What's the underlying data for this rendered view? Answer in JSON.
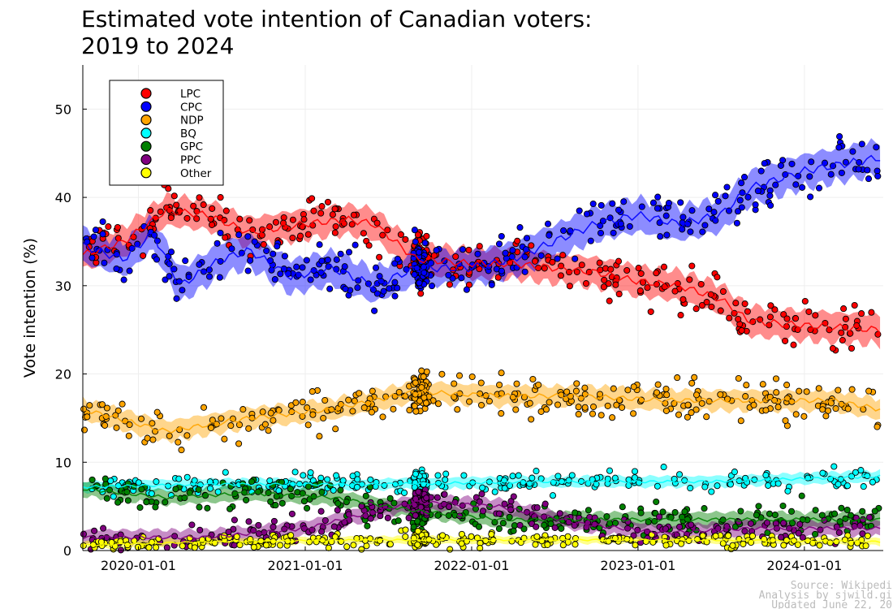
{
  "chart_data": {
    "type": "scatter",
    "title": "Estimated vote intention of Canadian voters:",
    "title_line2": "2019 to 2024",
    "xlabel": "",
    "ylabel": "Vote intention (%)",
    "ylim": [
      0,
      55
    ],
    "yticks": [
      0,
      10,
      20,
      30,
      40,
      50
    ],
    "xlim": [
      "2019-09-01",
      "2024-06-22"
    ],
    "xticks": [
      {
        "date": "2020-01-01",
        "label": "2020-01-01"
      },
      {
        "date": "2021-01-01",
        "label": "2021-01-01"
      },
      {
        "date": "2022-01-01",
        "label": "2022-01-01"
      },
      {
        "date": "2023-01-01",
        "label": "2023-01-01"
      },
      {
        "date": "2024-01-01",
        "label": "2024-01-01"
      }
    ],
    "grid": true,
    "legend_position": "top-left",
    "series": [
      {
        "name": "LPC",
        "color": "#ff0000",
        "trend": [
          [
            "2019-09-01",
            33.5
          ],
          [
            "2019-12-01",
            35
          ],
          [
            "2020-03-01",
            38.5
          ],
          [
            "2020-06-01",
            38
          ],
          [
            "2020-09-01",
            36
          ],
          [
            "2021-01-01",
            37
          ],
          [
            "2021-04-01",
            37.5
          ],
          [
            "2021-06-01",
            37
          ],
          [
            "2021-09-01",
            33
          ],
          [
            "2022-01-01",
            32.5
          ],
          [
            "2022-04-01",
            32.5
          ],
          [
            "2022-07-01",
            32
          ],
          [
            "2022-10-01",
            31.5
          ],
          [
            "2023-01-01",
            30.5
          ],
          [
            "2023-04-01",
            30
          ],
          [
            "2023-07-01",
            28.5
          ],
          [
            "2023-09-01",
            26
          ],
          [
            "2024-01-01",
            25.5
          ],
          [
            "2024-06-15",
            25
          ]
        ],
        "band": 1.6,
        "scatter": {
          "start": 33,
          "end": 25,
          "spread": 2.6,
          "count": 330
        }
      },
      {
        "name": "CPC",
        "color": "#0000ff",
        "trend": [
          [
            "2019-09-01",
            34.5
          ],
          [
            "2019-12-01",
            33
          ],
          [
            "2020-02-01",
            36
          ],
          [
            "2020-04-01",
            30
          ],
          [
            "2020-07-01",
            33
          ],
          [
            "2020-09-01",
            34
          ],
          [
            "2020-12-01",
            31
          ],
          [
            "2021-03-01",
            32
          ],
          [
            "2021-06-01",
            30
          ],
          [
            "2021-09-01",
            32
          ],
          [
            "2022-01-01",
            32
          ],
          [
            "2022-04-01",
            33
          ],
          [
            "2022-07-01",
            35
          ],
          [
            "2022-10-01",
            37
          ],
          [
            "2023-01-01",
            38
          ],
          [
            "2023-04-01",
            37
          ],
          [
            "2023-07-01",
            38
          ],
          [
            "2023-09-01",
            41
          ],
          [
            "2024-01-01",
            43
          ],
          [
            "2024-06-15",
            44.5
          ]
        ],
        "band": 1.8,
        "scatter": {
          "start": 32,
          "end": 42,
          "spread": 3.0,
          "count": 330
        }
      },
      {
        "name": "NDP",
        "color": "#ffa500",
        "trend": [
          [
            "2019-09-01",
            16
          ],
          [
            "2020-03-01",
            13.5
          ],
          [
            "2020-09-01",
            15
          ],
          [
            "2021-03-01",
            16
          ],
          [
            "2021-09-01",
            18
          ],
          [
            "2022-03-01",
            17.5
          ],
          [
            "2022-09-01",
            17.5
          ],
          [
            "2023-03-01",
            17
          ],
          [
            "2023-09-01",
            17
          ],
          [
            "2024-03-01",
            17
          ],
          [
            "2024-06-15",
            16
          ]
        ],
        "band": 1.1,
        "scatter": {
          "start": 17,
          "end": 18,
          "spread": 2.3,
          "count": 330
        }
      },
      {
        "name": "BQ",
        "color": "#00ffff",
        "trend": [
          [
            "2019-09-01",
            7.2
          ],
          [
            "2020-06-01",
            7.5
          ],
          [
            "2021-06-01",
            7.5
          ],
          [
            "2022-06-01",
            7.8
          ],
          [
            "2023-06-01",
            7.8
          ],
          [
            "2024-06-15",
            8.4
          ]
        ],
        "band": 0.6,
        "scatter": {
          "start": 7,
          "end": 8,
          "spread": 1.2,
          "count": 260
        }
      },
      {
        "name": "GPC",
        "color": "#008000",
        "trend": [
          [
            "2019-09-01",
            7
          ],
          [
            "2020-03-01",
            6
          ],
          [
            "2020-09-01",
            6.5
          ],
          [
            "2021-03-01",
            6
          ],
          [
            "2021-09-01",
            4.5
          ],
          [
            "2022-03-01",
            3.5
          ],
          [
            "2022-09-01",
            3.5
          ],
          [
            "2023-03-01",
            3.5
          ],
          [
            "2023-09-01",
            3.5
          ],
          [
            "2024-06-15",
            3.5
          ]
        ],
        "band": 0.8,
        "scatter": {
          "start": 7,
          "end": 4,
          "spread": 1.8,
          "count": 300
        }
      },
      {
        "name": "PPC",
        "color": "#800080",
        "trend": [
          [
            "2019-09-01",
            1.5
          ],
          [
            "2020-06-01",
            1.5
          ],
          [
            "2021-01-01",
            2.5
          ],
          [
            "2021-09-01",
            5.5
          ],
          [
            "2022-03-01",
            5
          ],
          [
            "2022-09-01",
            3
          ],
          [
            "2023-03-01",
            2
          ],
          [
            "2023-09-01",
            2.5
          ],
          [
            "2024-06-15",
            2.5
          ]
        ],
        "band": 0.8,
        "scatter": {
          "start": 1.5,
          "end": 2.5,
          "spread": 1.6,
          "count": 260
        }
      },
      {
        "name": "Other",
        "color": "#ffff00",
        "trend": [
          [
            "2019-09-01",
            0.6
          ],
          [
            "2020-06-01",
            1
          ],
          [
            "2021-06-01",
            1.2
          ],
          [
            "2022-06-01",
            1.2
          ],
          [
            "2023-06-01",
            1.2
          ],
          [
            "2024-06-15",
            1
          ]
        ],
        "band": 0.4,
        "scatter": {
          "start": 0.6,
          "end": 1,
          "spread": 0.8,
          "count": 300
        }
      }
    ],
    "source_note": [
      "Source: Wikipedi",
      "Analysis by sjwild.gi",
      "Updated June 22, 20"
    ]
  }
}
